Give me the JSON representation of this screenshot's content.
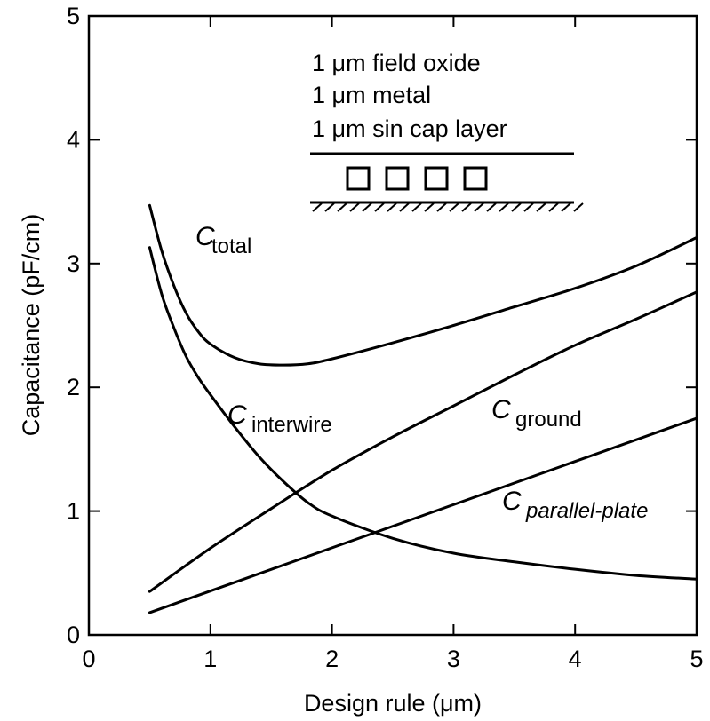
{
  "chart_data": {
    "type": "line",
    "title": "",
    "xlabel": "Design rule (μm)",
    "ylabel": "Capacitance (pF/cm)",
    "xlim": [
      0,
      5
    ],
    "ylim": [
      0,
      5
    ],
    "xticks": [
      "0",
      "1",
      "2",
      "3",
      "4",
      "5"
    ],
    "yticks": [
      "0",
      "1",
      "2",
      "3",
      "4",
      "5"
    ],
    "grid": false,
    "colors": {
      "line": "#000000",
      "background": "#ffffff"
    },
    "inset": {
      "lines": [
        "1 μm field oxide",
        "1 μm metal",
        "1 μm sin cap layer"
      ],
      "wire_count": 4
    },
    "series": [
      {
        "name": "C total",
        "label_main": "C",
        "label_sub": "total",
        "x": [
          0.5,
          0.6,
          0.7,
          0.8,
          0.9,
          1.0,
          1.2,
          1.4,
          1.6,
          1.8,
          2.0,
          2.5,
          3.0,
          3.5,
          4.0,
          4.5,
          5.0
        ],
        "y": [
          3.47,
          3.1,
          2.82,
          2.6,
          2.45,
          2.35,
          2.24,
          2.19,
          2.18,
          2.19,
          2.23,
          2.36,
          2.5,
          2.65,
          2.8,
          2.98,
          3.21
        ]
      },
      {
        "name": "C interwire",
        "label_main": "C",
        "label_sub": "interwire",
        "x": [
          0.5,
          0.6,
          0.7,
          0.8,
          0.9,
          1.0,
          1.2,
          1.4,
          1.6,
          1.8,
          2.0,
          2.5,
          3.0,
          3.5,
          4.0,
          4.5,
          5.0
        ],
        "y": [
          3.13,
          2.75,
          2.48,
          2.25,
          2.08,
          1.94,
          1.68,
          1.44,
          1.24,
          1.07,
          0.96,
          0.78,
          0.66,
          0.59,
          0.53,
          0.48,
          0.45
        ]
      },
      {
        "name": "C ground",
        "label_main": "C",
        "label_sub": "ground",
        "x": [
          0.5,
          1.0,
          1.5,
          2.0,
          2.5,
          3.0,
          3.5,
          4.0,
          4.5,
          5.0
        ],
        "y": [
          0.35,
          0.7,
          1.02,
          1.33,
          1.6,
          1.85,
          2.1,
          2.34,
          2.55,
          2.77
        ]
      },
      {
        "name": "C parallel-plate",
        "label_main": "C",
        "label_sub": "parallel-plate",
        "x": [
          0.5,
          5.0
        ],
        "y": [
          0.18,
          1.75
        ]
      }
    ]
  }
}
